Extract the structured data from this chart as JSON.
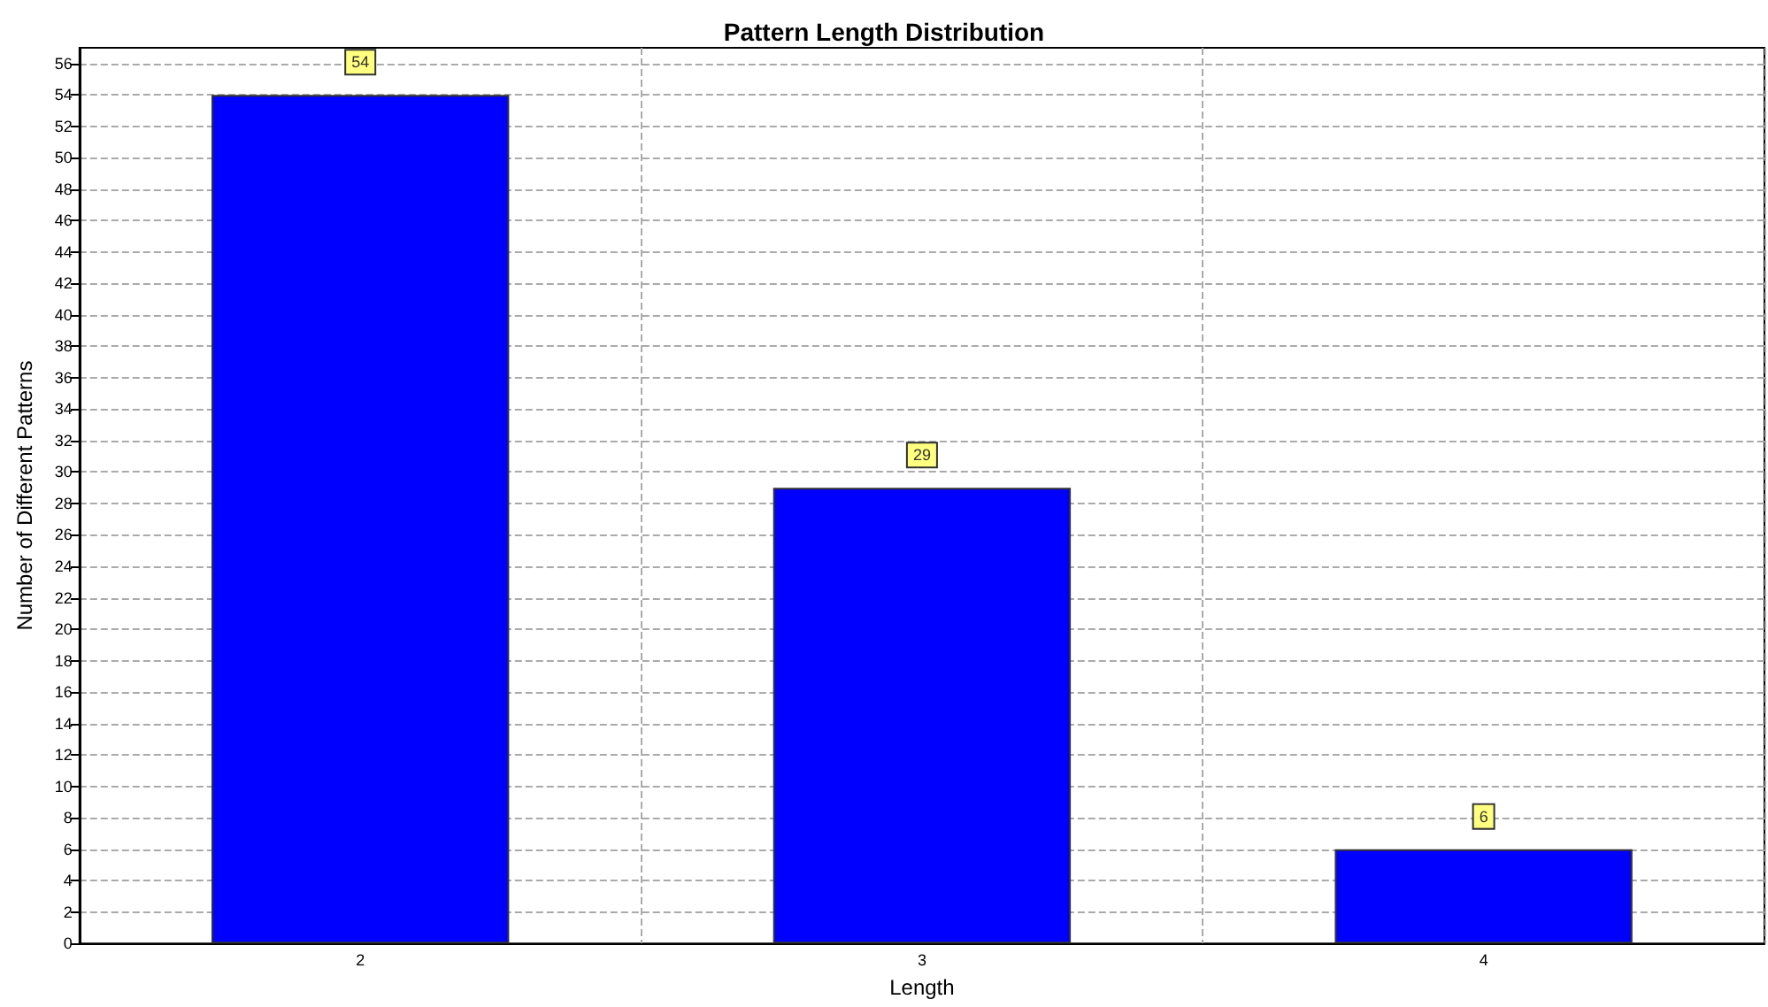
{
  "chart_data": {
    "type": "bar",
    "title": "Pattern Length Distribution",
    "xlabel": "Length",
    "ylabel": "Number of Different Patterns",
    "categories": [
      "2",
      "3",
      "4"
    ],
    "values": [
      54,
      29,
      6
    ],
    "color": "#0000ff",
    "ylim": [
      0,
      57
    ],
    "yticks": [
      0,
      2,
      4,
      6,
      8,
      10,
      12,
      14,
      16,
      18,
      20,
      22,
      24,
      26,
      28,
      30,
      32,
      34,
      36,
      38,
      40,
      42,
      44,
      46,
      48,
      50,
      52,
      54,
      56
    ],
    "grid": true,
    "data_labels": true
  }
}
